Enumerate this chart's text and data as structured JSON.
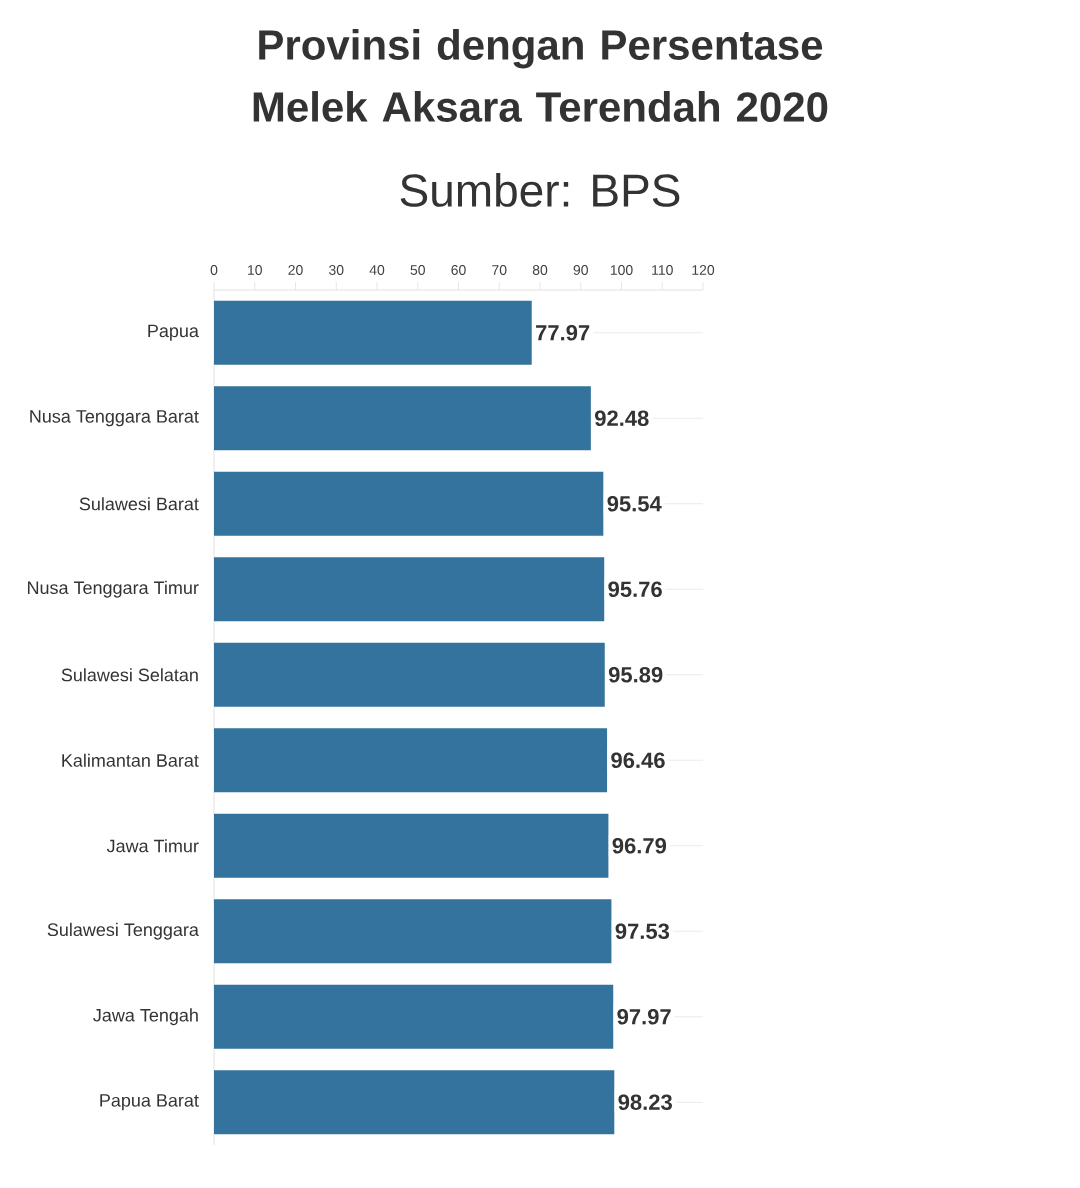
{
  "chart_data": {
    "type": "bar",
    "orientation": "horizontal",
    "title": "Provinsi dengan Persentase Melek Aksara Terendah 2020",
    "subtitle": "Sumber: BPS",
    "categories": [
      "Papua",
      "Nusa Tenggara Barat",
      "Sulawesi Barat",
      "Nusa Tenggara Timur",
      "Sulawesi Selatan",
      "Kalimantan Barat",
      "Jawa Timur",
      "Sulawesi Tenggara",
      "Jawa Tengah",
      "Papua Barat"
    ],
    "values": [
      77.97,
      92.48,
      95.54,
      95.76,
      95.89,
      96.46,
      96.79,
      97.53,
      97.97,
      98.23
    ],
    "color": "#34739d",
    "xlim": [
      0,
      120
    ],
    "xticks": [
      0,
      10,
      20,
      30,
      40,
      50,
      60,
      70,
      80,
      90,
      100,
      110,
      120
    ],
    "data_labels": true,
    "grid": "y"
  }
}
